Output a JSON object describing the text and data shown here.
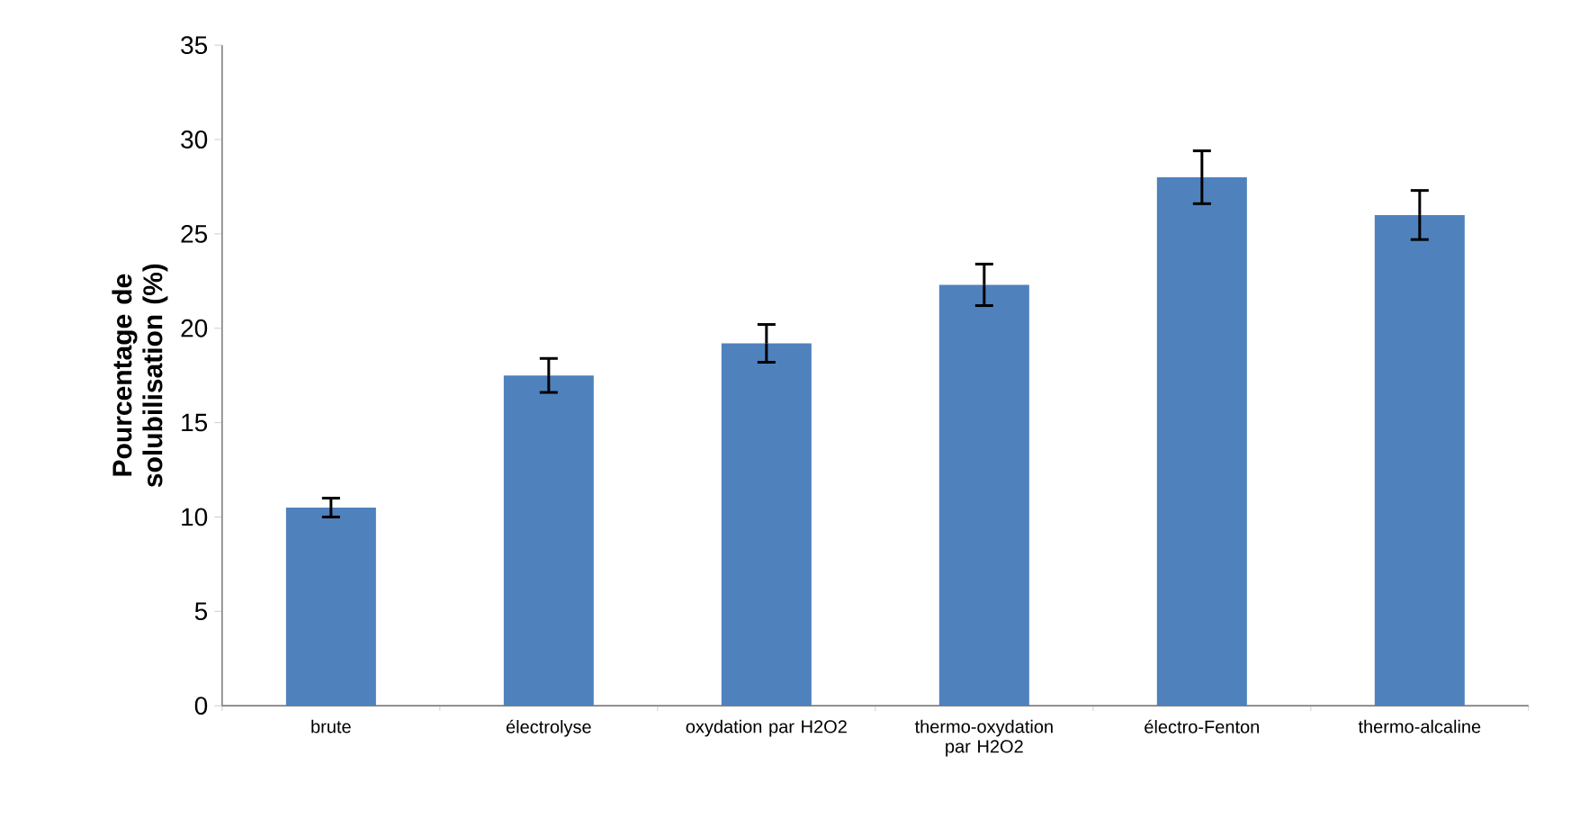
{
  "chart_data": {
    "type": "bar",
    "ylabel": "Pourcentage de solubilisation (%)",
    "categories": [
      "brute",
      "électrolyse",
      "oxydation par H2O2",
      "thermo-oxydation par H2O2",
      "électro-Fenton",
      "thermo-alcaline"
    ],
    "values": [
      10.5,
      17.5,
      19.2,
      22.3,
      28.0,
      26.0
    ],
    "errors": [
      0.5,
      0.9,
      1.0,
      1.1,
      1.4,
      1.3
    ],
    "color": "#4f81bd",
    "ylim": [
      0,
      35
    ],
    "yticks": [
      0,
      5,
      10,
      15,
      20,
      25,
      30,
      35
    ]
  }
}
